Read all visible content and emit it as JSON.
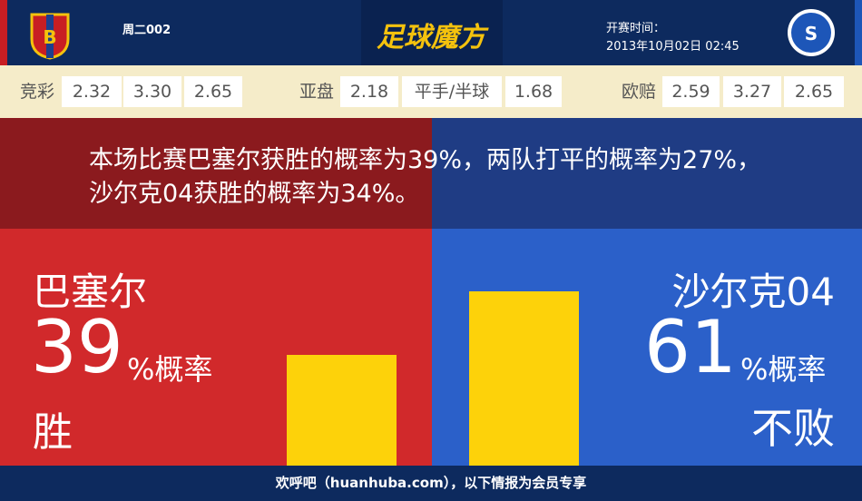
{
  "header": {
    "match_id": "周二002",
    "logo": "足球魔方",
    "start_label": "开赛时间：",
    "start_time": "2013年10月02日 02:45"
  },
  "odds": [
    {
      "label": "竞彩",
      "values": [
        "2.32",
        "3.30",
        "2.65"
      ]
    },
    {
      "label": "亚盘",
      "values": [
        "2.18",
        "平手/半球",
        "1.68"
      ]
    },
    {
      "label": "欧赔",
      "values": [
        "2.59",
        "3.27",
        "2.65"
      ]
    }
  ],
  "summary": "本场比赛巴塞尔获胜的概率为39%，两队打平的概率为27%，沙尔克04获胜的概率为34%。",
  "home": {
    "name": "巴塞尔",
    "percent": 39,
    "unit": "%概率",
    "outcome": "胜"
  },
  "away": {
    "name": "沙尔克04",
    "percent": 61,
    "unit": "%概率",
    "outcome": "不败"
  },
  "footer": "欢呼吧（huanhuba.com），以下情报为会员专享"
}
